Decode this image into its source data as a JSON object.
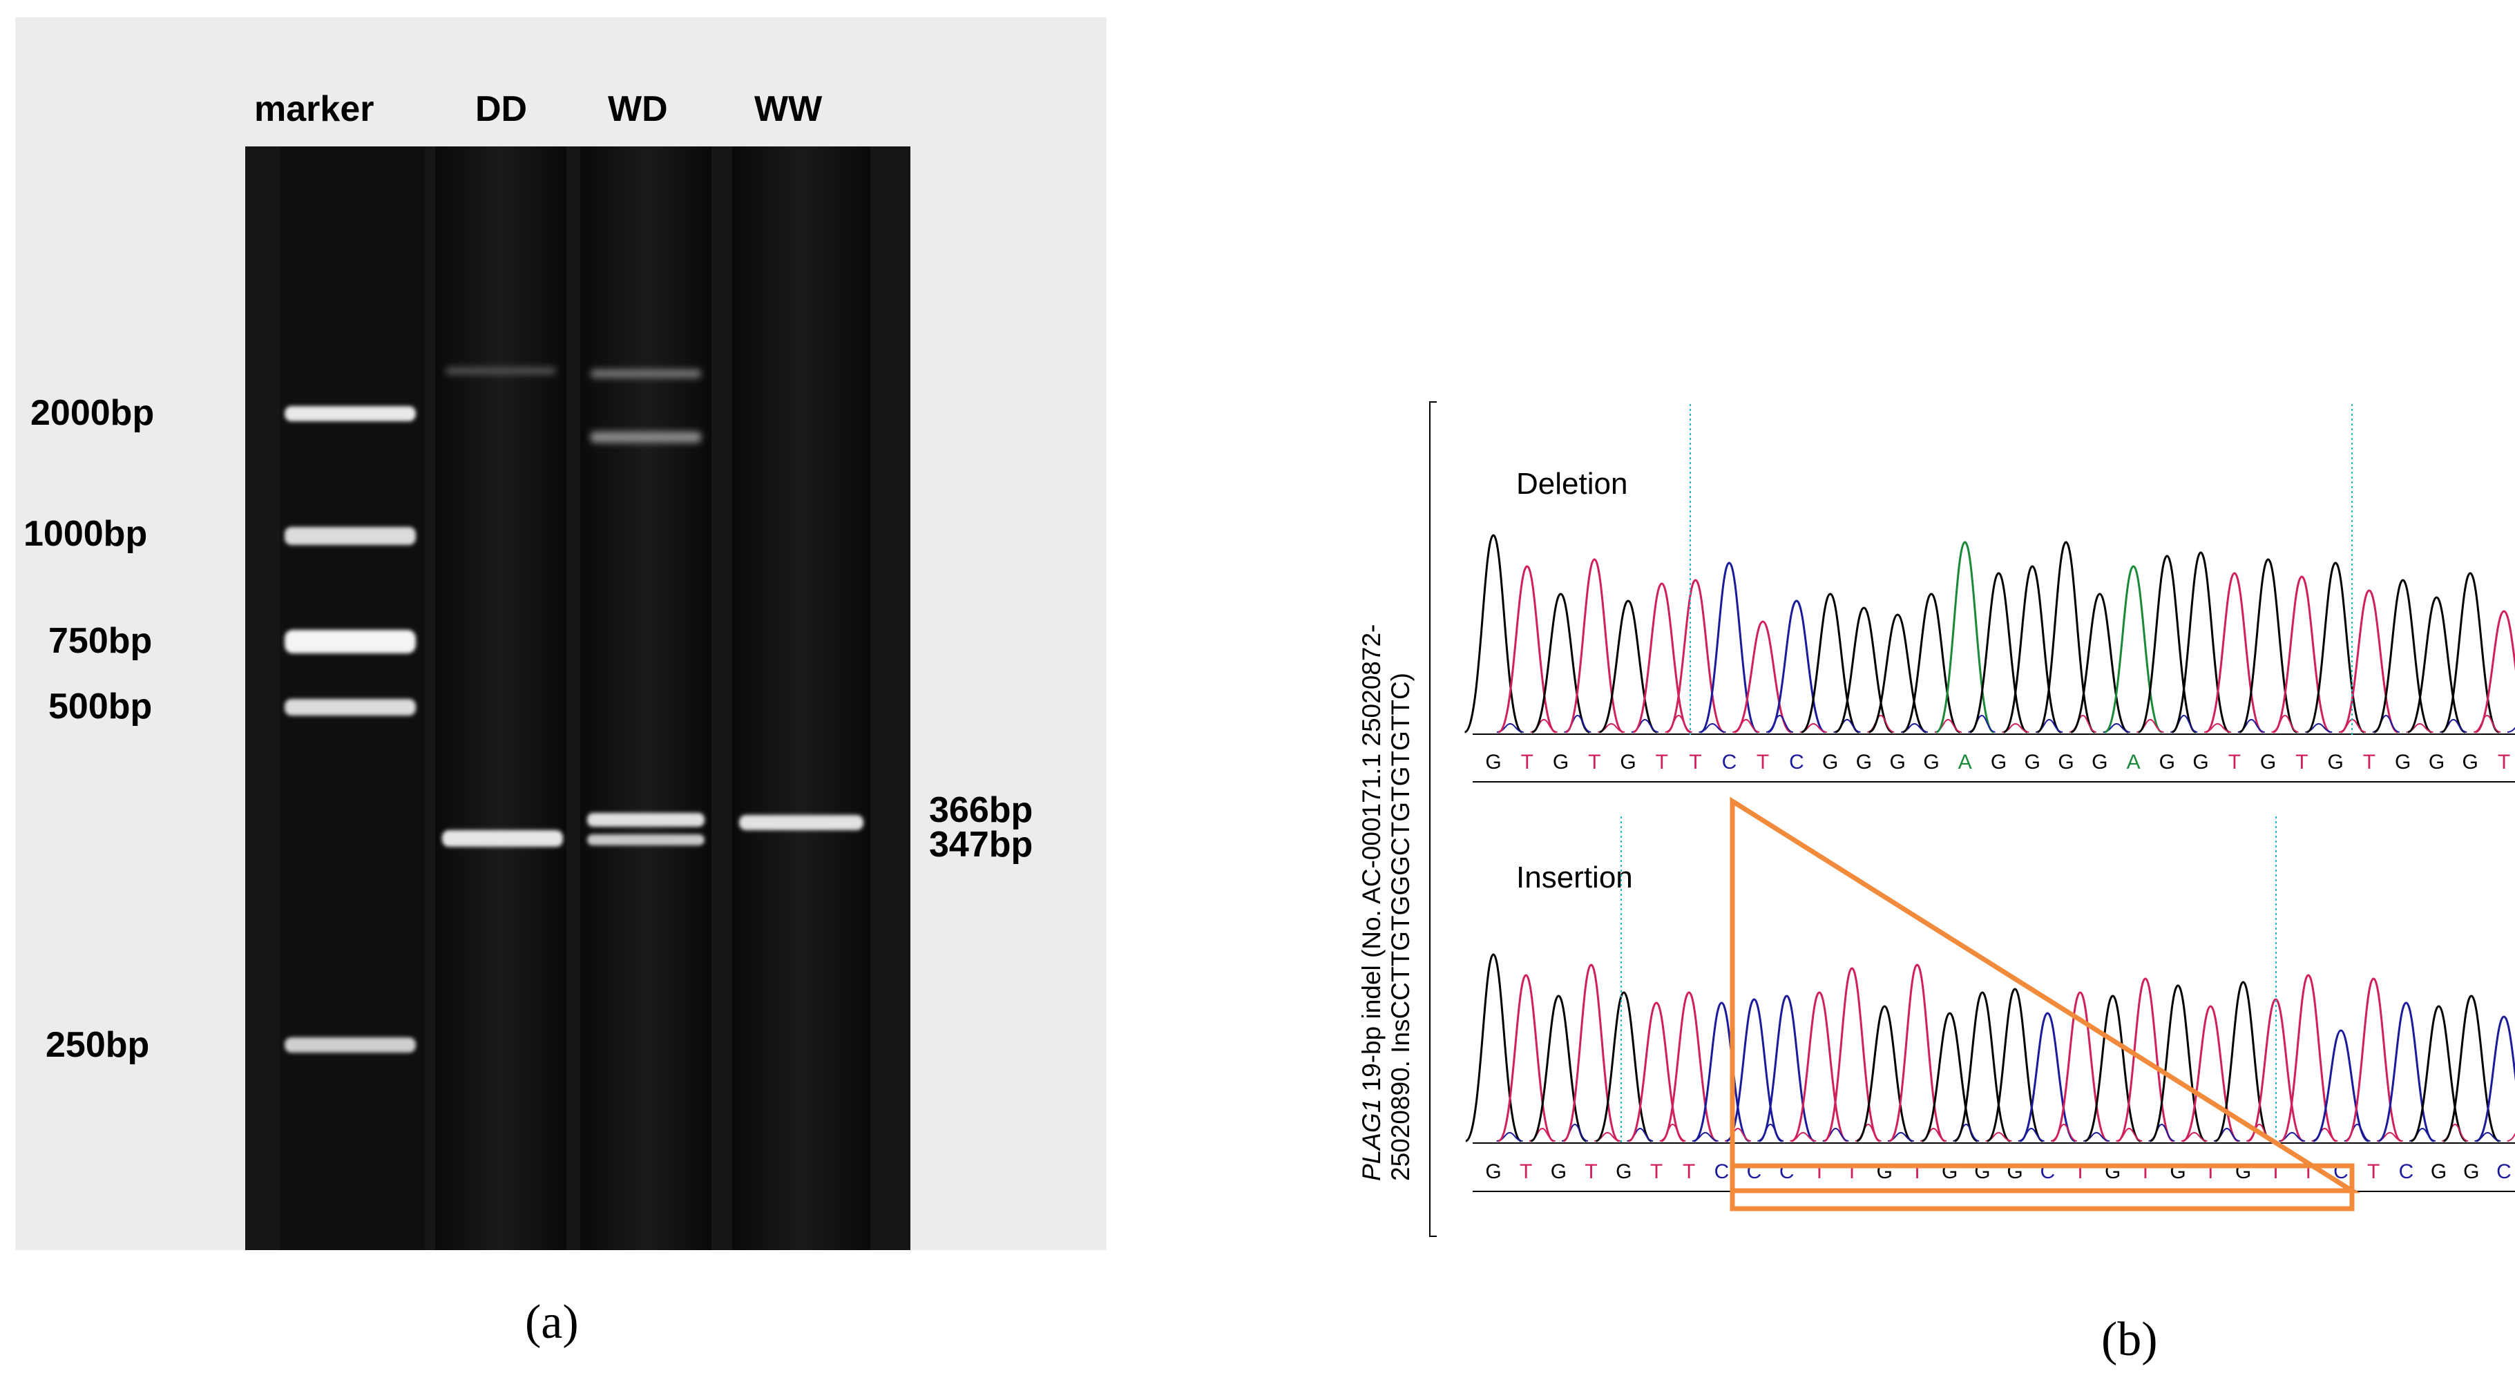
{
  "panel_a": {
    "caption": "(a)",
    "lane_labels": [
      "marker",
      "DD",
      "WD",
      "WW"
    ],
    "marker_labels": [
      "2000bp",
      "1000bp",
      "750bp",
      "500bp",
      "250bp"
    ],
    "band_labels": [
      "366bp",
      "347bp"
    ]
  },
  "panel_b": {
    "caption": "(b)",
    "vertical_label_gene": "PLAG1",
    "vertical_label_line1_rest": " 19-bp indel  (No. AC-000171.1  25020872-",
    "vertical_label_line2": "25020890. InsCCTTGTGGGCTGTGTGTTC)",
    "deletion_label": "Deletion",
    "insertion_label": "Insertion",
    "deletion_sequence": "GTGTGTTCTCGGGGAGGGGAGGTGTGTGGGT",
    "insertion_sequence": "GTGTGTTCCCTTGTGGGCTGTGTGTTCTCGGC",
    "base_colors": {
      "A": "#1a8a3a",
      "C": "#1a1a9a",
      "G": "#000000",
      "T": "#d0205a"
    },
    "highlight_color": "#f28a3c"
  }
}
